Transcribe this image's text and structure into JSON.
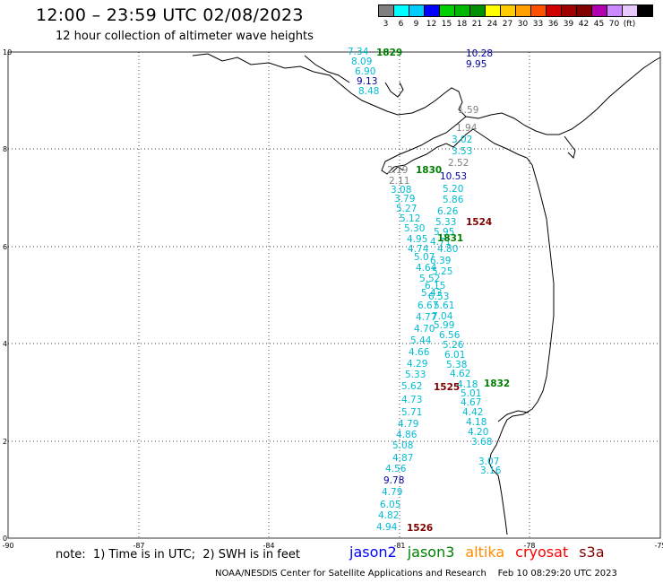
{
  "header": {
    "title": "12:00 – 23:59 UTC 02/08/2023",
    "subtitle": "12 hour collection of altimeter wave heights"
  },
  "color_scale": {
    "colors": [
      "#7f7f7f",
      "#00ffff",
      "#00ccff",
      "#0000ff",
      "#00d000",
      "#00b800",
      "#009000",
      "#ffff00",
      "#ffcc00",
      "#ffa000",
      "#ff5000",
      "#d00000",
      "#a00000",
      "#800000",
      "#b000b0",
      "#cc88ff",
      "#e8c8ff",
      "#000000"
    ],
    "labels": [
      "3",
      "6",
      "9",
      "12",
      "15",
      "18",
      "21",
      "24",
      "27",
      "30",
      "33",
      "36",
      "39",
      "42",
      "45",
      "70",
      "(ft)"
    ]
  },
  "axes": {
    "lat_ticks": [
      "10",
      "8",
      "6",
      "4",
      "2",
      "0"
    ],
    "lon_ticks": [
      "-90",
      "-87",
      "-84",
      "-81",
      "-78",
      "-75"
    ]
  },
  "cycle_labels": [
    {
      "text": "1829",
      "color": "#008000"
    },
    {
      "text": "1830",
      "color": "#008000"
    },
    {
      "text": "1831",
      "color": "#008000"
    },
    {
      "text": "1832",
      "color": "#008000"
    },
    {
      "text": "1524",
      "color": "#800000"
    },
    {
      "text": "1525",
      "color": "#800000"
    },
    {
      "text": "1526",
      "color": "#800000"
    }
  ],
  "swh_labels": [
    {
      "text": "7.34",
      "color": "#00bcd4"
    },
    {
      "text": "8.09",
      "color": "#00bcd4"
    },
    {
      "text": "6.90",
      "color": "#00bcd4"
    },
    {
      "text": "9.13",
      "color": "#0000a0"
    },
    {
      "text": "8.48",
      "color": "#00bcd4"
    },
    {
      "text": "10.28",
      "color": "#0000a0"
    },
    {
      "text": "9.95",
      "color": "#0000a0"
    },
    {
      "text": "1.59",
      "color": "#808080"
    },
    {
      "text": "1.94",
      "color": "#808080"
    },
    {
      "text": "3.02",
      "color": "#00bcd4"
    },
    {
      "text": "3.53",
      "color": "#00bcd4"
    },
    {
      "text": "2.52",
      "color": "#808080"
    },
    {
      "text": "2.19",
      "color": "#808080"
    },
    {
      "text": "2.11",
      "color": "#808080"
    },
    {
      "text": "10.53",
      "color": "#0000a0"
    },
    {
      "text": "3.08",
      "color": "#00bcd4"
    },
    {
      "text": "5.20",
      "color": "#00bcd4"
    },
    {
      "text": "3.79",
      "color": "#00bcd4"
    },
    {
      "text": "5.86",
      "color": "#00bcd4"
    },
    {
      "text": "5.27",
      "color": "#00bcd4"
    },
    {
      "text": "6.26",
      "color": "#00bcd4"
    },
    {
      "text": "5.12",
      "color": "#00bcd4"
    },
    {
      "text": "5.33",
      "color": "#00bcd4"
    },
    {
      "text": "5.30",
      "color": "#00bcd4"
    },
    {
      "text": "5.95",
      "color": "#00bcd4"
    },
    {
      "text": "4.95",
      "color": "#00bcd4"
    },
    {
      "text": "4.71",
      "color": "#00bcd4"
    },
    {
      "text": "4.74",
      "color": "#00bcd4"
    },
    {
      "text": "4.80",
      "color": "#00bcd4"
    },
    {
      "text": "5.07",
      "color": "#00bcd4"
    },
    {
      "text": "6.39",
      "color": "#00bcd4"
    },
    {
      "text": "4.64",
      "color": "#00bcd4"
    },
    {
      "text": "5.25",
      "color": "#00bcd4"
    },
    {
      "text": "5.52",
      "color": "#00bcd4"
    },
    {
      "text": "6.15",
      "color": "#00bcd4"
    },
    {
      "text": "5.43",
      "color": "#00bcd4"
    },
    {
      "text": "6.53",
      "color": "#00bcd4"
    },
    {
      "text": "6.67",
      "color": "#00bcd4"
    },
    {
      "text": "5.61",
      "color": "#00bcd4"
    },
    {
      "text": "4.77",
      "color": "#00bcd4"
    },
    {
      "text": "7.04",
      "color": "#00bcd4"
    },
    {
      "text": "4.70",
      "color": "#00bcd4"
    },
    {
      "text": "5.99",
      "color": "#00bcd4"
    },
    {
      "text": "5.44",
      "color": "#00bcd4"
    },
    {
      "text": "6.56",
      "color": "#00bcd4"
    },
    {
      "text": "4.66",
      "color": "#00bcd4"
    },
    {
      "text": "5.26",
      "color": "#00bcd4"
    },
    {
      "text": "6.01",
      "color": "#00bcd4"
    },
    {
      "text": "4.29",
      "color": "#00bcd4"
    },
    {
      "text": "5.38",
      "color": "#00bcd4"
    },
    {
      "text": "5.33",
      "color": "#00bcd4"
    },
    {
      "text": "4.62",
      "color": "#00bcd4"
    },
    {
      "text": "5.62",
      "color": "#00bcd4"
    },
    {
      "text": "4.18",
      "color": "#00bcd4"
    },
    {
      "text": "4.73",
      "color": "#00bcd4"
    },
    {
      "text": "5.01",
      "color": "#00bcd4"
    },
    {
      "text": "4.67",
      "color": "#00bcd4"
    },
    {
      "text": "5.71",
      "color": "#00bcd4"
    },
    {
      "text": "4.42",
      "color": "#00bcd4"
    },
    {
      "text": "4.79",
      "color": "#00bcd4"
    },
    {
      "text": "4.18",
      "color": "#00bcd4"
    },
    {
      "text": "4.86",
      "color": "#00bcd4"
    },
    {
      "text": "4.20",
      "color": "#00bcd4"
    },
    {
      "text": "5.08",
      "color": "#00bcd4"
    },
    {
      "text": "3.68",
      "color": "#00bcd4"
    },
    {
      "text": "4.87",
      "color": "#00bcd4"
    },
    {
      "text": "3.07",
      "color": "#00bcd4"
    },
    {
      "text": "4.56",
      "color": "#00bcd4"
    },
    {
      "text": "3.16",
      "color": "#00bcd4"
    },
    {
      "text": "9.78",
      "color": "#0000a0"
    },
    {
      "text": "4.79",
      "color": "#00bcd4"
    },
    {
      "text": "6.05",
      "color": "#00bcd4"
    },
    {
      "text": "4.82",
      "color": "#00bcd4"
    },
    {
      "text": "4.94",
      "color": "#00bcd4"
    }
  ],
  "footer": {
    "note": "note:  1) Time is in UTC;  2) SWH is in feet",
    "legend": [
      {
        "text": "jason2",
        "color": "#0000ff"
      },
      {
        "text": "jason3",
        "color": "#008000"
      },
      {
        "text": "altika",
        "color": "#ff8c00"
      },
      {
        "text": "cryosat",
        "color": "#ff0000"
      },
      {
        "text": "s3a",
        "color": "#800000"
      }
    ],
    "credit": "NOAA/NESDIS Center for Satellite Applications and Research    Feb 10 08:29:20 UTC 2023"
  }
}
